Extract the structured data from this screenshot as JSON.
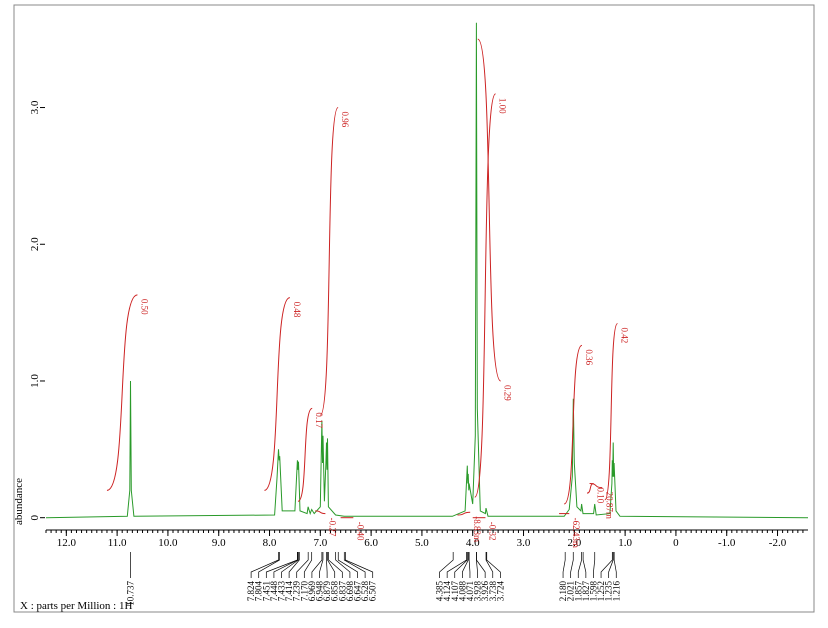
{
  "chart_data": {
    "type": "line",
    "x_label": "X : parts per Million : 1H",
    "y_label": "abundance",
    "xlim": [
      12.4,
      -2.6
    ],
    "ylim": [
      -0.09,
      3.75
    ],
    "xticks": [
      {
        "value": 12,
        "label": "12.0"
      },
      {
        "value": 11,
        "label": "11.0"
      },
      {
        "value": 10,
        "label": "10.0"
      },
      {
        "value": 9,
        "label": "9.0"
      },
      {
        "value": 8,
        "label": "8.0"
      },
      {
        "value": 7,
        "label": "7.0"
      },
      {
        "value": 6,
        "label": "6.0"
      },
      {
        "value": 5,
        "label": "5.0"
      },
      {
        "value": 4,
        "label": "4.0"
      },
      {
        "value": 3,
        "label": "3.0"
      },
      {
        "value": 2,
        "label": "2.0"
      },
      {
        "value": 1,
        "label": "1.0"
      },
      0,
      {
        "value": -1,
        "label": "-1.0"
      },
      {
        "value": -2,
        "label": "-2.0"
      }
    ],
    "yticks": [
      0,
      {
        "value": 1,
        "label": "1.0"
      },
      {
        "value": 2,
        "label": "2.0"
      },
      {
        "value": 3,
        "label": "3.0"
      }
    ],
    "series": [
      {
        "color": "#2a9a2a",
        "x": [
          12.4,
          10.8,
          10.75,
          10.737,
          10.72,
          10.67,
          7.9,
          7.85,
          7.824,
          7.81,
          7.8,
          7.75,
          7.5,
          7.451,
          7.44,
          7.43,
          7.4,
          7.26,
          7.24,
          7.2,
          7.17,
          7.12,
          7.0,
          6.969,
          6.958,
          6.948,
          6.92,
          6.89,
          6.879,
          6.868,
          6.858,
          6.84,
          6.7,
          6.53,
          4.4,
          4.15,
          4.107,
          4.097,
          4.088,
          4.078,
          4.071,
          4.0,
          3.95,
          3.928,
          3.91,
          3.85,
          3.75,
          3.738,
          3.7,
          2.2,
          2.1,
          2.04,
          2.021,
          2.0,
          1.95,
          1.87,
          1.857,
          1.83,
          1.62,
          1.598,
          1.57,
          1.3,
          1.26,
          1.252,
          1.245,
          1.235,
          1.225,
          1.216,
          1.18,
          1.1,
          -2.6
        ],
        "values": [
          0,
          0.01,
          0.2,
          1.0,
          0.2,
          0.01,
          0.02,
          0.3,
          0.5,
          0.42,
          0.45,
          0.05,
          0.05,
          0.42,
          0.35,
          0.41,
          0.05,
          0.03,
          0.08,
          0.03,
          0.06,
          0.03,
          0.08,
          0.71,
          0.4,
          0.6,
          0.12,
          0.4,
          0.55,
          0.35,
          0.58,
          0.08,
          0.02,
          0.01,
          0.01,
          0.05,
          0.38,
          0.25,
          0.32,
          0.2,
          0.25,
          0.1,
          0.6,
          3.62,
          0.8,
          0.05,
          0.03,
          0.07,
          0.01,
          0.01,
          0.06,
          0.3,
          0.87,
          0.4,
          0.08,
          0.05,
          0.1,
          0.03,
          0.03,
          0.1,
          0.02,
          0.03,
          0.25,
          0.42,
          0.3,
          0.55,
          0.3,
          0.4,
          0.05,
          0.01,
          0
        ]
      }
    ],
    "integrals": {
      "color": "#cc2222",
      "labels": [
        "0.50",
        "0.48",
        "0.17",
        "-0.27",
        "0.96",
        "-0.40",
        "-8.83m",
        "-0.32",
        "1.00",
        "0.29",
        "-62.43m",
        "0.36",
        "0.10",
        "20.87m",
        "0.42"
      ],
      "from": [
        11.2,
        8.1,
        7.44,
        7.1,
        7.0,
        6.6,
        4.3,
        4.0,
        3.96,
        3.9,
        2.3,
        2.2,
        1.75,
        1.7,
        1.4
      ],
      "to": [
        10.6,
        7.6,
        7.16,
        6.9,
        6.65,
        6.35,
        4.05,
        3.75,
        3.55,
        3.45,
        2.1,
        1.85,
        1.62,
        1.45,
        1.15
      ],
      "y_start": [
        0.2,
        0.2,
        0.12,
        0.05,
        0.75,
        0.0,
        0.02,
        0.0,
        0.15,
        3.5,
        0.03,
        0.1,
        0.18,
        0.25,
        0.13
      ],
      "y_end": [
        1.63,
        1.61,
        0.8,
        0.03,
        3.0,
        0.0,
        0.04,
        0.0,
        3.1,
        1.0,
        0.03,
        1.26,
        0.25,
        0.22,
        1.42
      ]
    },
    "peak_labels": [
      [
        "10.737"
      ],
      [
        "7.824",
        "7.804",
        "7.451",
        "7.448",
        "7.433",
        "7.414",
        "7.239",
        "7.170",
        "6.969",
        "6.948",
        "6.879",
        "6.858",
        "6.837",
        "6.698",
        "6.647",
        "6.528",
        "6.507"
      ],
      [
        "4.385",
        "4.124",
        "4.107",
        "4.088",
        "4.071",
        "3.928",
        "3.926",
        "3.738",
        "3.724"
      ],
      [
        "2.180",
        "2.021",
        "1.857",
        "1.827",
        "1.598",
        "1.252",
        "1.235",
        "1.216"
      ]
    ]
  }
}
